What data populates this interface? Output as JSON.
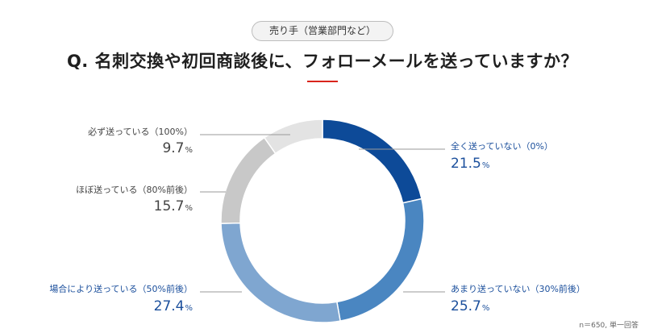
{
  "header": {
    "badge": "売り手（営業部門など）",
    "question": "Q. 名刺交換や初回商談後に、フォローメールを送っていますか？"
  },
  "colors": {
    "accent_rule": "#d9241c",
    "blue_label": "#1b4f9c",
    "gray_label": "#444444"
  },
  "chart_data": {
    "type": "pie",
    "donut": true,
    "start": "12 o'clock",
    "direction": "clockwise",
    "percent_unit": "%",
    "slices": [
      {
        "label": "全く送っていない（0%）",
        "value": 21.5,
        "value_text": "21.5",
        "color": "#0d4a98"
      },
      {
        "label": "あまり送っていない（30%前後）",
        "value": 25.7,
        "value_text": "25.7",
        "color": "#4a86c1"
      },
      {
        "label": "場合により送っている（50%前後）",
        "value": 27.4,
        "value_text": "27.4",
        "color": "#7fa6d0"
      },
      {
        "label": "ほぼ送っている（80%前後）",
        "value": 15.7,
        "value_text": "15.7",
        "color": "#c8c8c8"
      },
      {
        "label": "必ず送っている（100%）",
        "value": 9.7,
        "value_text": "9.7",
        "color": "#e3e3e3"
      }
    ]
  },
  "footnote": "n＝650, 単一回答"
}
